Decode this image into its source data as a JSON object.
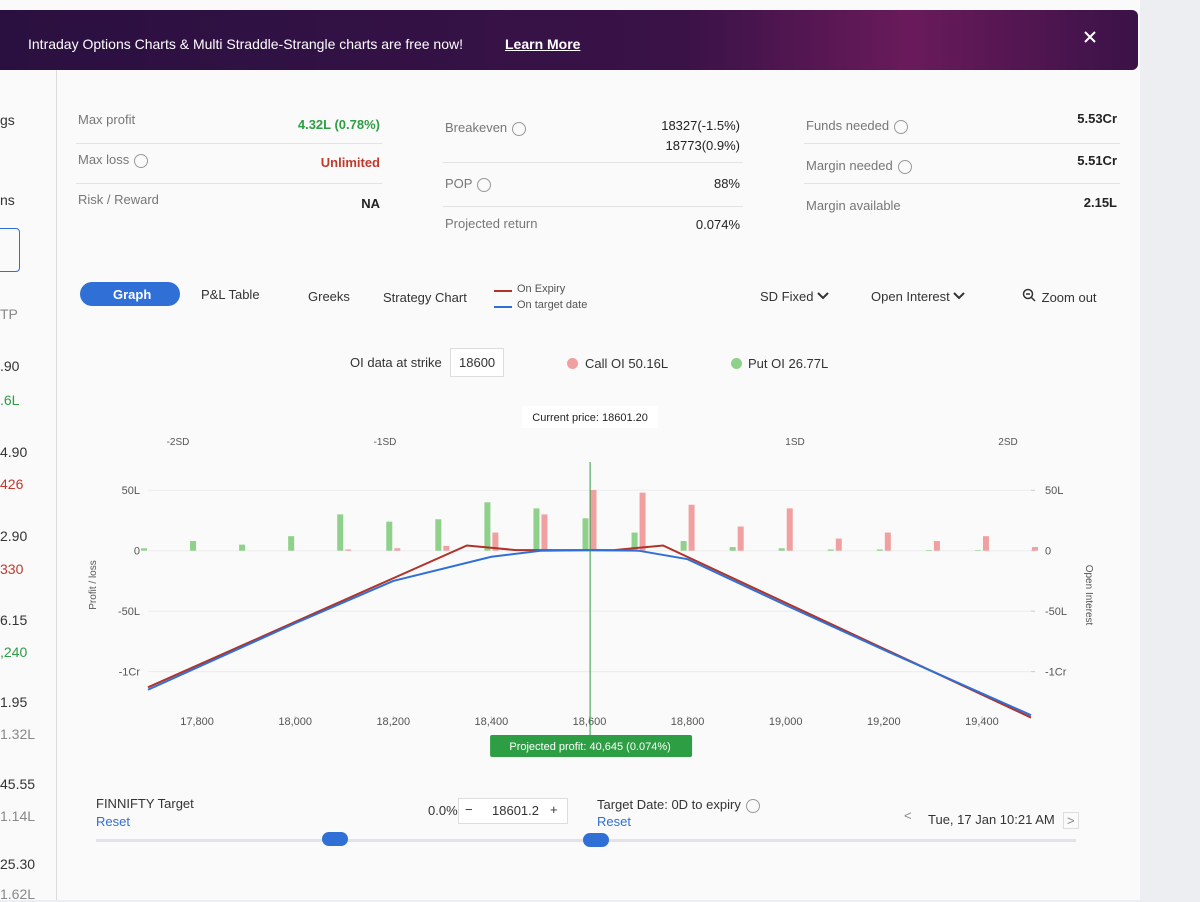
{
  "banner": {
    "text": "Intraday Options Charts & Multi Straddle-Strangle charts are free now!",
    "link": "Learn More"
  },
  "sidebar": [
    "gs",
    "ns",
    "TP",
    ".90",
    ".6L",
    "4.90",
    "426",
    "2.90",
    "330",
    "6.15",
    ",240",
    "1.95",
    "1.32L",
    "45.55",
    "1.14L",
    "25.30",
    "1.62L"
  ],
  "summary": {
    "max_profit": {
      "label": "Max profit",
      "value": "4.32L (0.78%)"
    },
    "max_loss": {
      "label": "Max loss",
      "value": "Unlimited"
    },
    "risk_reward": {
      "label": "Risk / Reward",
      "value": "NA"
    },
    "breakeven": {
      "label": "Breakeven",
      "values": [
        "18327(-1.5%)",
        "18773(0.9%)"
      ]
    },
    "pop": {
      "label": "POP",
      "value": "88%"
    },
    "projected_return": {
      "label": "Projected return",
      "value": "0.074%"
    },
    "funds_needed": {
      "label": "Funds needed",
      "value": "5.53Cr"
    },
    "margin_needed": {
      "label": "Margin needed",
      "value": "5.51Cr"
    },
    "margin_available": {
      "label": "Margin available",
      "value": "2.15L"
    }
  },
  "tabs": [
    "Graph",
    "P&L Table",
    "Greeks",
    "Strategy Chart"
  ],
  "controls": {
    "sd": "SD Fixed",
    "oi": "Open Interest",
    "zoom": "Zoom out"
  },
  "oi_info": {
    "label": "OI data at strike",
    "strike": "18600",
    "call_label": "Call OI",
    "call_value": "50.16L",
    "put_label": "Put OI",
    "put_value": "26.77L"
  },
  "chart_data": {
    "type": "payoff",
    "current_price_label": "Current price: 18601.20",
    "current_price": 18601.2,
    "sd_labels": [
      "-2SD",
      "-1SD",
      "1SD",
      "2SD"
    ],
    "projected_label": "Projected profit: 40,645 (0.074%)",
    "ylabel": "Profit / loss",
    "y2label": "Open Interest",
    "xlim": [
      17700,
      19500
    ],
    "xticks": [
      {
        "value": 17800,
        "label": "17,800"
      },
      {
        "value": 18000,
        "label": "18,000"
      },
      {
        "value": 18200,
        "label": "18,200"
      },
      {
        "value": 18400,
        "label": "18,400"
      },
      {
        "value": 18600,
        "label": "18,600"
      },
      {
        "value": 18800,
        "label": "18,800"
      },
      {
        "value": 19000,
        "label": "19,000"
      },
      {
        "value": 19200,
        "label": "19,200"
      },
      {
        "value": 19400,
        "label": "19,400"
      }
    ],
    "ylim": [
      -14000000,
      7500000
    ],
    "yticks": [
      {
        "value": 5000000,
        "label": "50L"
      },
      0,
      {
        "value": -5000000,
        "label": "-50L"
      },
      {
        "value": -10000000,
        "label": "-1Cr"
      }
    ],
    "y2lim": [
      -14000000,
      7500000
    ],
    "y2ticks": [
      {
        "value": 5000000,
        "label": "50L"
      },
      0,
      {
        "value": -5000000,
        "label": "-50L"
      },
      {
        "value": -10000000,
        "label": "-1Cr"
      }
    ],
    "grid": true,
    "series": [
      {
        "name": "On Expiry",
        "color": "#b03228",
        "x": [
          17700,
          18350,
          18450,
          18650,
          18750,
          19500
        ],
        "values": [
          -11300000,
          432000,
          50000,
          50000,
          432000,
          -13800000
        ]
      },
      {
        "name": "On target date",
        "color": "#2f6fd6",
        "x": [
          17700,
          18000,
          18200,
          18400,
          18500,
          18600,
          18700,
          18800,
          19000,
          19200,
          19500
        ],
        "values": [
          -11500000,
          -6000000,
          -2500000,
          -500000,
          0,
          40645,
          0,
          -700000,
          -4500000,
          -8200000,
          -13600000
        ]
      }
    ],
    "oi": {
      "strikes": [
        17700,
        17800,
        17900,
        18000,
        18100,
        18200,
        18300,
        18400,
        18500,
        18600,
        18700,
        18800,
        18900,
        19000,
        19100,
        19200,
        19300,
        19400,
        19500
      ],
      "put": {
        "color": "#8fd18a",
        "values": [
          200000,
          800000,
          500000,
          1200000,
          3000000,
          2400000,
          2600000,
          4000000,
          3500000,
          2677000,
          1500000,
          800000,
          300000,
          200000,
          100000,
          100000,
          50000,
          50000,
          0
        ]
      },
      "call": {
        "color": "#f0a0a0",
        "values": [
          0,
          0,
          0,
          0,
          100000,
          200000,
          400000,
          1500000,
          3000000,
          5016000,
          4800000,
          3800000,
          2000000,
          3500000,
          1000000,
          1500000,
          800000,
          1200000,
          300000
        ]
      }
    }
  },
  "bottom": {
    "target_label": "FINNIFTY Target",
    "reset": "Reset",
    "pct": "0.0%",
    "minus": "−",
    "target_value": "18601.2",
    "plus": "+",
    "date_label": "Target Date:",
    "expiry": "0D to expiry",
    "date_reset": "Reset",
    "prev": "<",
    "date": "Tue, 17 Jan 10:21 AM",
    "next": ">"
  }
}
